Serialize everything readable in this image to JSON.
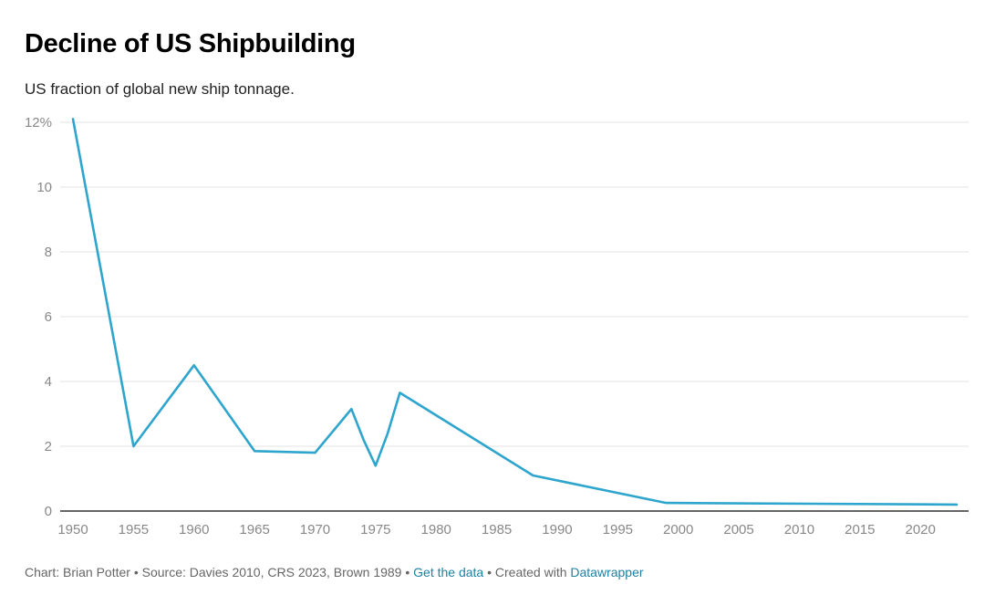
{
  "header": {
    "title": "Decline of US Shipbuilding",
    "subtitle": "US fraction of global new ship tonnage."
  },
  "footer": {
    "chart_prefix": "Chart: Brian Potter",
    "sep1": " • ",
    "source": "Source: Davies 2010, CRS 2023, Brown 1989",
    "sep2": " • ",
    "get_data_link": "Get the data",
    "sep3": " • ",
    "created_with": "Created with ",
    "datawrapper_link": "Datawrapper"
  },
  "colors": {
    "line": "#2ea5cd",
    "grid": "#e3e3e3",
    "baseline": "#333333",
    "link": "#1d81a2"
  },
  "chart_data": {
    "type": "line",
    "title": "Decline of US Shipbuilding",
    "subtitle": "US fraction of global new ship tonnage.",
    "xlabel": "",
    "ylabel": "",
    "xlim": [
      1950,
      2023
    ],
    "ylim": [
      0,
      12
    ],
    "x_ticks": [
      1950,
      1955,
      1960,
      1965,
      1970,
      1975,
      1980,
      1985,
      1990,
      1995,
      2000,
      2005,
      2010,
      2015,
      2020
    ],
    "x_tick_labels": [
      "1950",
      "1955",
      "1960",
      "1965",
      "1970",
      "1975",
      "1980",
      "1985",
      "1990",
      "1995",
      "2000",
      "2005",
      "2010",
      "2015",
      "2020"
    ],
    "y_ticks": [
      0,
      2,
      4,
      6,
      8,
      10,
      12
    ],
    "y_tick_labels": [
      "0",
      "2",
      "4",
      "6",
      "8",
      "10",
      "12%"
    ],
    "grid": true,
    "series": [
      {
        "name": "US fraction of global new ship tonnage",
        "x": [
          1950,
          1955,
          1960,
          1965,
          1970,
          1973,
          1974,
          1975,
          1976,
          1977,
          1988,
          1999,
          2023
        ],
        "y": [
          12.1,
          2.0,
          4.5,
          1.85,
          1.8,
          3.15,
          2.2,
          1.4,
          2.4,
          3.65,
          1.1,
          0.25,
          0.2
        ]
      }
    ]
  }
}
